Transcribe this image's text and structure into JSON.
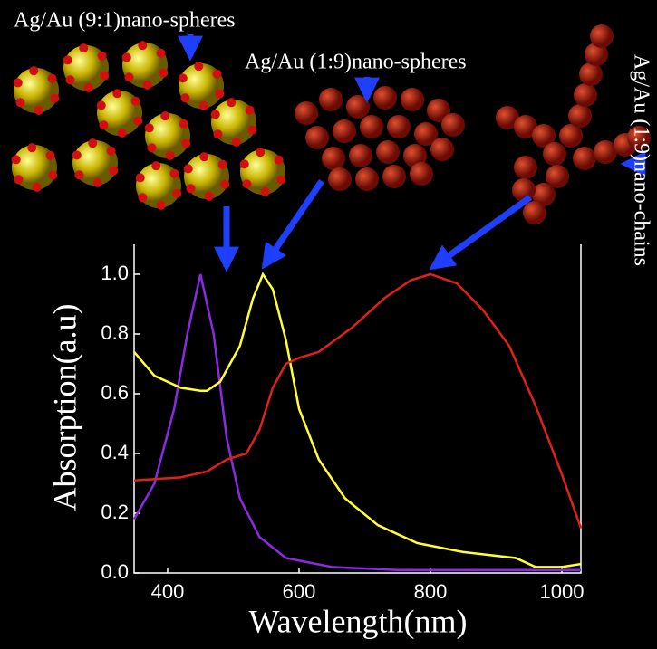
{
  "chart_data": {
    "type": "line",
    "annotations": [
      "Ag/Au (9:1)nano-spheres",
      "Ag/Au (1:9)nano-spheres",
      "Ag/Au (1:9)nano-chains"
    ],
    "x_label": "Wavelength(nm)",
    "y_label": "Absorption(a.u)",
    "xlim": [
      349,
      1029
    ],
    "ylim": [
      0,
      1.1
    ],
    "xticks": [
      400,
      600,
      800,
      1000
    ],
    "yticks": [
      {
        "value": 0,
        "label": "0.0"
      },
      {
        "value": 0.2,
        "label": "0.2"
      },
      {
        "value": 0.4,
        "label": "0.4"
      },
      {
        "value": 0.6,
        "label": "0.6"
      },
      {
        "value": 0.8,
        "label": "0.8"
      },
      {
        "value": 1,
        "label": "1.0"
      }
    ],
    "series": [
      {
        "color": "#8a2be2",
        "x": [
          349,
          380,
          410,
          430,
          450,
          470,
          490,
          510,
          540,
          580,
          650,
          750,
          1029
        ],
        "values": [
          0.18,
          0.3,
          0.55,
          0.8,
          1.0,
          0.8,
          0.45,
          0.25,
          0.12,
          0.05,
          0.02,
          0.01,
          0.01
        ]
      },
      {
        "color": "#ffff33",
        "x": [
          349,
          380,
          420,
          450,
          460,
          480,
          510,
          530,
          545,
          560,
          580,
          600,
          630,
          670,
          720,
          780,
          850,
          930,
          960,
          1000,
          1029
        ],
        "values": [
          0.74,
          0.66,
          0.62,
          0.61,
          0.61,
          0.64,
          0.76,
          0.92,
          1.0,
          0.95,
          0.78,
          0.55,
          0.38,
          0.25,
          0.16,
          0.1,
          0.07,
          0.05,
          0.02,
          0.02,
          0.03
        ]
      },
      {
        "color": "#e0201a",
        "x": [
          349,
          420,
          460,
          490,
          520,
          540,
          560,
          580,
          600,
          630,
          680,
          730,
          770,
          800,
          840,
          880,
          920,
          960,
          1000,
          1029
        ],
        "values": [
          0.31,
          0.32,
          0.34,
          0.38,
          0.4,
          0.48,
          0.62,
          0.7,
          0.72,
          0.74,
          0.82,
          0.92,
          0.98,
          1.0,
          0.97,
          0.88,
          0.76,
          0.56,
          0.33,
          0.15
        ]
      }
    ]
  }
}
